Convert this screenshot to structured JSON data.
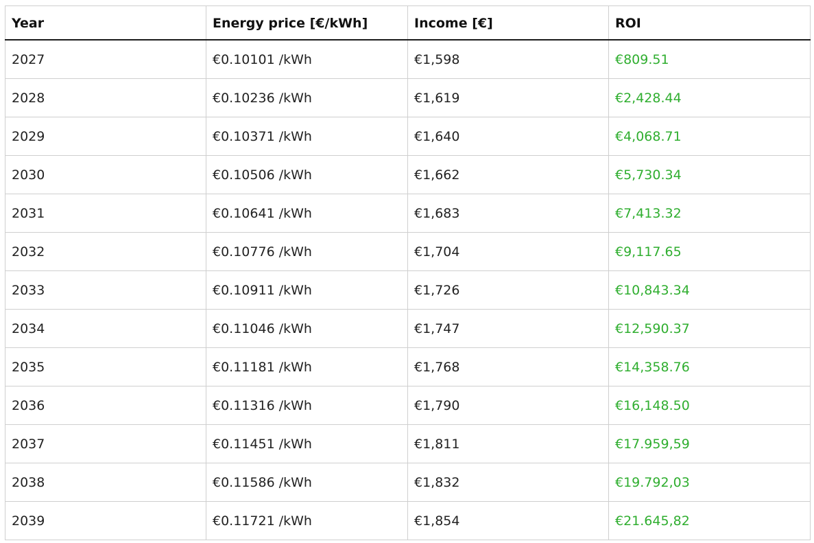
{
  "table": {
    "headers": [
      "Year",
      "Energy price [€/kWh]",
      "Income [€]",
      "ROI"
    ],
    "rows": [
      {
        "year": "2027",
        "price": "€0.10101 /kWh",
        "income": "€1,598",
        "roi": "€809.51"
      },
      {
        "year": "2028",
        "price": "€0.10236 /kWh",
        "income": "€1,619",
        "roi": "€2,428.44"
      },
      {
        "year": "2029",
        "price": "€0.10371 /kWh",
        "income": "€1,640",
        "roi": "€4,068.71"
      },
      {
        "year": "2030",
        "price": "€0.10506 /kWh",
        "income": "€1,662",
        "roi": "€5,730.34"
      },
      {
        "year": "2031",
        "price": "€0.10641 /kWh",
        "income": "€1,683",
        "roi": "€7,413.32"
      },
      {
        "year": "2032",
        "price": "€0.10776 /kWh",
        "income": "€1,704",
        "roi": "€9,117.65"
      },
      {
        "year": "2033",
        "price": "€0.10911 /kWh",
        "income": "€1,726",
        "roi": "€10,843.34"
      },
      {
        "year": "2034",
        "price": "€0.11046 /kWh",
        "income": "€1,747",
        "roi": "€12,590.37"
      },
      {
        "year": "2035",
        "price": "€0.11181 /kWh",
        "income": "€1,768",
        "roi": "€14,358.76"
      },
      {
        "year": "2036",
        "price": "€0.11316 /kWh",
        "income": "€1,790",
        "roi": "€16,148.50"
      },
      {
        "year": "2037",
        "price": "€0.11451 /kWh",
        "income": "€1,811",
        "roi": "€17.959,59"
      },
      {
        "year": "2038",
        "price": "€0.11586 /kWh",
        "income": "€1,832",
        "roi": "€19.792,03"
      },
      {
        "year": "2039",
        "price": "€0.11721 /kWh",
        "income": "€1,854",
        "roi": "€21.645,82"
      }
    ]
  },
  "colors": {
    "roi_text": "#2fae2f",
    "border": "#cfcfcf",
    "header_rule": "#1a1a1a"
  }
}
